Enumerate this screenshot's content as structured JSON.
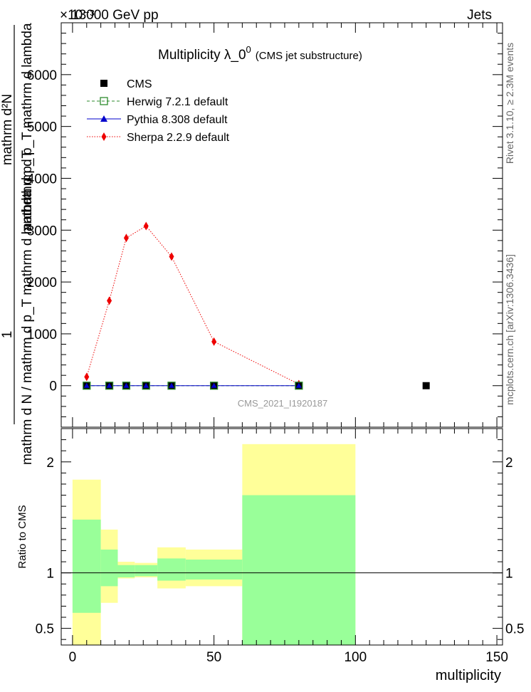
{
  "header": {
    "energy": "13000 GeV pp",
    "category": "Jets",
    "exponent": "×10⁻³"
  },
  "side_labels": {
    "rivet": "Rivet 3.1.10, ≥ 2.3M events",
    "mcplots": "mcplots.cern.ch [arXiv:1306.3436]"
  },
  "colors": {
    "cms": "#000000",
    "herwig": "#2e8b2e",
    "pythia": "#0000cc",
    "sherpa": "#ee0000",
    "band_outer": "#ffff99",
    "band_inner": "#99ff99"
  },
  "chart_data": [
    {
      "type": "line",
      "title_main": "Multiplicity  λ_0",
      "title_sup": "0",
      "title_sub": "(CMS jet substructure)",
      "ylabel_upper": "mathrm d²N",
      "ylabel_lower": "mathrm d N / mathrm d p_T mathrm d lambda",
      "ylabel_overlay_1": "mathrm d p_T mathrm d lambda",
      "ylabel_overlay_2": "mathrm d p_T",
      "ylabel_one": "1",
      "analysis_id": "CMS_2021_I1920187",
      "xlim": [
        -4,
        152
      ],
      "ylim": [
        -800,
        7000
      ],
      "yticks": [
        0,
        1000,
        2000,
        3000,
        4000,
        5000,
        6000
      ],
      "ytick_labels": [
        "0",
        "1000",
        "2000",
        "3000",
        "4000",
        "5000",
        "6000"
      ],
      "legend_position": "top-left",
      "series": [
        {
          "name": "CMS",
          "marker": "square-filled",
          "x": [
            5,
            13,
            19,
            26,
            35,
            50,
            80,
            125
          ],
          "y": [
            0,
            0,
            0,
            0,
            0,
            0,
            0,
            0
          ]
        },
        {
          "name": "Herwig 7.2.1 default",
          "marker": "square-open",
          "line": "dashed",
          "x": [
            5,
            13,
            19,
            26,
            35,
            50,
            80
          ],
          "y": [
            0,
            0,
            0,
            0,
            0,
            0,
            0
          ]
        },
        {
          "name": "Pythia 8.308 default",
          "marker": "triangle",
          "line": "solid",
          "x": [
            5,
            13,
            19,
            26,
            35,
            50,
            80
          ],
          "y": [
            0,
            0,
            0,
            0,
            0,
            0,
            0
          ]
        },
        {
          "name": "Sherpa 2.2.9 default",
          "marker": "diamond",
          "line": "dotted",
          "x": [
            5,
            13,
            19,
            26,
            35,
            50,
            80
          ],
          "y": [
            170,
            1640,
            2850,
            3080,
            2490,
            850,
            30
          ]
        }
      ]
    },
    {
      "type": "bar",
      "ylabel": "Ratio to CMS",
      "xlabel": "multiplicity",
      "xlim": [
        -4,
        152
      ],
      "ylim": [
        0.35,
        2.3
      ],
      "xticks": [
        0,
        50,
        100,
        150
      ],
      "xtick_labels": [
        "0",
        "50",
        "100",
        "150"
      ],
      "yticks": [
        0.5,
        1,
        2
      ],
      "ytick_labels": [
        "0.5",
        "1",
        "2"
      ],
      "reference_line": 1,
      "bins": [
        {
          "x0": 0,
          "x1": 10,
          "outer": [
            0.35,
            1.84
          ],
          "inner": [
            0.64,
            1.48
          ]
        },
        {
          "x0": 10,
          "x1": 16,
          "outer": [
            0.73,
            1.39
          ],
          "inner": [
            0.88,
            1.21
          ]
        },
        {
          "x0": 16,
          "x1": 22,
          "outer": [
            0.95,
            1.1
          ],
          "inner": [
            0.96,
            1.07
          ]
        },
        {
          "x0": 22,
          "x1": 30,
          "outer": [
            0.96,
            1.09
          ],
          "inner": [
            0.97,
            1.07
          ]
        },
        {
          "x0": 30,
          "x1": 40,
          "outer": [
            0.86,
            1.23
          ],
          "inner": [
            0.93,
            1.13
          ]
        },
        {
          "x0": 40,
          "x1": 60,
          "outer": [
            0.88,
            1.21
          ],
          "inner": [
            0.94,
            1.12
          ]
        },
        {
          "x0": 60,
          "x1": 100,
          "outer": [
            0.35,
            2.16
          ],
          "inner": [
            0.35,
            1.7
          ]
        }
      ]
    }
  ]
}
